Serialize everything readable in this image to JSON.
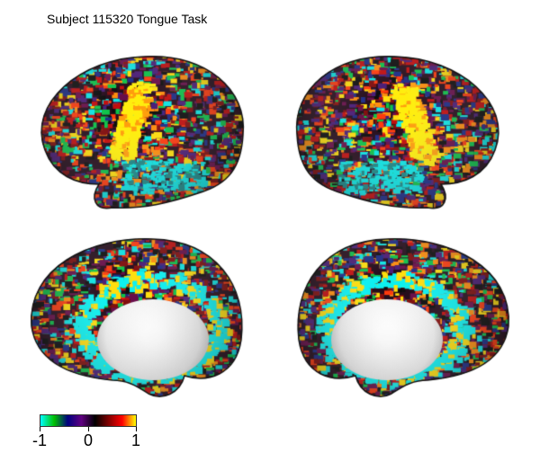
{
  "title": "Subject 115320 Tongue Task",
  "colorbar": {
    "ticks": [
      "-1",
      "0",
      "1"
    ],
    "colors": [
      "#00ffff",
      "#00c000",
      "#000080",
      "#600080",
      "#000000",
      "#800000",
      "#ff0000",
      "#ffff00"
    ]
  },
  "views": [
    {
      "name": "left-lateral",
      "hemisphere": "left",
      "surface": "lateral"
    },
    {
      "name": "right-lateral",
      "hemisphere": "right",
      "surface": "lateral"
    },
    {
      "name": "left-medial",
      "hemisphere": "left",
      "surface": "medial"
    },
    {
      "name": "right-medial",
      "hemisphere": "right",
      "surface": "medial"
    }
  ]
}
